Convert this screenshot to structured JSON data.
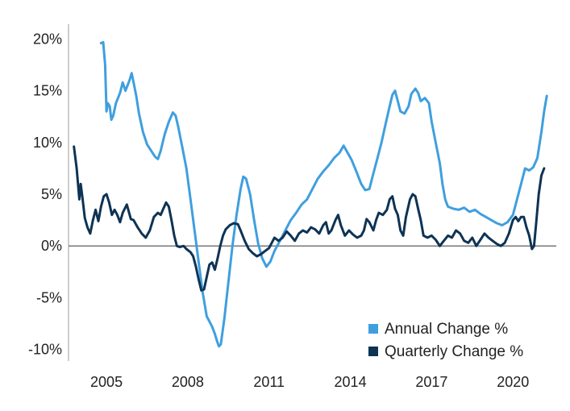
{
  "chart_data": {
    "type": "line",
    "title": "",
    "xlabel": "",
    "ylabel": "",
    "x_ticks": [
      "2005",
      "2008",
      "2011",
      "2014",
      "2017",
      "2020"
    ],
    "y_ticks": [
      "20%",
      "15%",
      "10%",
      "5%",
      "0%",
      "-5%",
      "-10%"
    ],
    "xlim": [
      2003.6,
      2021.6
    ],
    "ylim": [
      -10.5,
      20.5
    ],
    "grid": false,
    "zero_line": true,
    "legend": "bottom-right",
    "series": [
      {
        "name": "Annual Change %",
        "color": "#3f9fde",
        "points": [
          [
            2004.8,
            19.6
          ],
          [
            2004.88,
            19.7
          ],
          [
            2004.95,
            17.5
          ],
          [
            2005.0,
            13.0
          ],
          [
            2005.05,
            13.8
          ],
          [
            2005.12,
            13.5
          ],
          [
            2005.18,
            12.2
          ],
          [
            2005.25,
            12.6
          ],
          [
            2005.35,
            13.8
          ],
          [
            2005.5,
            14.8
          ],
          [
            2005.6,
            15.8
          ],
          [
            2005.7,
            15.0
          ],
          [
            2005.85,
            16.0
          ],
          [
            2005.93,
            16.7
          ],
          [
            2006.0,
            15.8
          ],
          [
            2006.1,
            14.5
          ],
          [
            2006.2,
            12.8
          ],
          [
            2006.35,
            11.0
          ],
          [
            2006.5,
            9.8
          ],
          [
            2006.65,
            9.2
          ],
          [
            2006.8,
            8.6
          ],
          [
            2006.9,
            8.4
          ],
          [
            2007.0,
            9.2
          ],
          [
            2007.15,
            10.8
          ],
          [
            2007.3,
            12.0
          ],
          [
            2007.45,
            12.9
          ],
          [
            2007.55,
            12.6
          ],
          [
            2007.65,
            11.5
          ],
          [
            2007.8,
            9.5
          ],
          [
            2007.95,
            7.5
          ],
          [
            2008.1,
            4.5
          ],
          [
            2008.25,
            1.5
          ],
          [
            2008.4,
            -1.5
          ],
          [
            2008.55,
            -4.5
          ],
          [
            2008.7,
            -6.8
          ],
          [
            2008.8,
            -7.3
          ],
          [
            2008.9,
            -7.8
          ],
          [
            2009.0,
            -8.5
          ],
          [
            2009.08,
            -9.2
          ],
          [
            2009.15,
            -9.7
          ],
          [
            2009.22,
            -9.5
          ],
          [
            2009.35,
            -7.0
          ],
          [
            2009.5,
            -3.5
          ],
          [
            2009.65,
            0.0
          ],
          [
            2009.8,
            3.0
          ],
          [
            2009.95,
            5.5
          ],
          [
            2010.05,
            6.7
          ],
          [
            2010.15,
            6.5
          ],
          [
            2010.3,
            5.0
          ],
          [
            2010.45,
            2.5
          ],
          [
            2010.6,
            0.2
          ],
          [
            2010.75,
            -1.2
          ],
          [
            2010.9,
            -2.0
          ],
          [
            2011.05,
            -1.5
          ],
          [
            2011.2,
            -0.5
          ],
          [
            2011.4,
            0.5
          ],
          [
            2011.6,
            1.5
          ],
          [
            2011.8,
            2.5
          ],
          [
            2012.0,
            3.2
          ],
          [
            2012.2,
            4.0
          ],
          [
            2012.4,
            4.5
          ],
          [
            2012.6,
            5.5
          ],
          [
            2012.8,
            6.5
          ],
          [
            2013.0,
            7.2
          ],
          [
            2013.2,
            7.8
          ],
          [
            2013.4,
            8.5
          ],
          [
            2013.6,
            9.0
          ],
          [
            2013.75,
            9.7
          ],
          [
            2013.9,
            9.0
          ],
          [
            2014.05,
            8.3
          ],
          [
            2014.25,
            7.0
          ],
          [
            2014.4,
            6.0
          ],
          [
            2014.55,
            5.4
          ],
          [
            2014.7,
            5.5
          ],
          [
            2014.85,
            7.0
          ],
          [
            2015.0,
            8.5
          ],
          [
            2015.15,
            10.0
          ],
          [
            2015.3,
            11.8
          ],
          [
            2015.45,
            13.5
          ],
          [
            2015.55,
            14.6
          ],
          [
            2015.65,
            15.0
          ],
          [
            2015.75,
            14.0
          ],
          [
            2015.85,
            13.0
          ],
          [
            2016.0,
            12.8
          ],
          [
            2016.15,
            13.5
          ],
          [
            2016.25,
            14.7
          ],
          [
            2016.4,
            15.2
          ],
          [
            2016.5,
            14.8
          ],
          [
            2016.6,
            14.0
          ],
          [
            2016.75,
            14.3
          ],
          [
            2016.9,
            13.8
          ],
          [
            2017.0,
            12.0
          ],
          [
            2017.15,
            10.0
          ],
          [
            2017.3,
            8.0
          ],
          [
            2017.4,
            6.0
          ],
          [
            2017.5,
            4.5
          ],
          [
            2017.6,
            3.8
          ],
          [
            2017.8,
            3.6
          ],
          [
            2018.0,
            3.5
          ],
          [
            2018.2,
            3.7
          ],
          [
            2018.4,
            3.3
          ],
          [
            2018.6,
            3.5
          ],
          [
            2018.8,
            3.1
          ],
          [
            2019.0,
            2.8
          ],
          [
            2019.2,
            2.5
          ],
          [
            2019.4,
            2.2
          ],
          [
            2019.6,
            2.0
          ],
          [
            2019.8,
            2.3
          ],
          [
            2020.0,
            3.0
          ],
          [
            2020.15,
            4.5
          ],
          [
            2020.3,
            6.0
          ],
          [
            2020.45,
            7.5
          ],
          [
            2020.6,
            7.3
          ],
          [
            2020.75,
            7.6
          ],
          [
            2020.9,
            8.5
          ],
          [
            2021.05,
            11.0
          ],
          [
            2021.15,
            13.0
          ],
          [
            2021.25,
            14.5
          ]
        ]
      },
      {
        "name": "Quarterly Change %",
        "color": "#0e3354",
        "points": [
          [
            2003.8,
            9.6
          ],
          [
            2003.9,
            7.5
          ],
          [
            2004.0,
            4.5
          ],
          [
            2004.05,
            6.0
          ],
          [
            2004.12,
            4.5
          ],
          [
            2004.2,
            2.7
          ],
          [
            2004.3,
            1.8
          ],
          [
            2004.4,
            1.2
          ],
          [
            2004.5,
            2.5
          ],
          [
            2004.6,
            3.5
          ],
          [
            2004.7,
            2.4
          ],
          [
            2004.8,
            3.8
          ],
          [
            2004.9,
            4.8
          ],
          [
            2005.0,
            5.0
          ],
          [
            2005.1,
            4.2
          ],
          [
            2005.2,
            3.0
          ],
          [
            2005.3,
            3.5
          ],
          [
            2005.4,
            3.0
          ],
          [
            2005.5,
            2.3
          ],
          [
            2005.6,
            3.2
          ],
          [
            2005.75,
            4.0
          ],
          [
            2005.9,
            2.6
          ],
          [
            2006.0,
            2.5
          ],
          [
            2006.15,
            1.8
          ],
          [
            2006.3,
            1.2
          ],
          [
            2006.45,
            0.8
          ],
          [
            2006.6,
            1.5
          ],
          [
            2006.75,
            2.8
          ],
          [
            2006.9,
            3.2
          ],
          [
            2007.0,
            3.0
          ],
          [
            2007.1,
            3.6
          ],
          [
            2007.2,
            4.2
          ],
          [
            2007.3,
            3.8
          ],
          [
            2007.4,
            2.5
          ],
          [
            2007.5,
            1.0
          ],
          [
            2007.6,
            0.0
          ],
          [
            2007.7,
            -0.1
          ],
          [
            2007.85,
            0.0
          ],
          [
            2007.95,
            -0.3
          ],
          [
            2008.1,
            -0.6
          ],
          [
            2008.2,
            -1.0
          ],
          [
            2008.3,
            -2.0
          ],
          [
            2008.4,
            -3.2
          ],
          [
            2008.5,
            -4.3
          ],
          [
            2008.6,
            -4.2
          ],
          [
            2008.7,
            -3.0
          ],
          [
            2008.8,
            -1.8
          ],
          [
            2008.9,
            -1.6
          ],
          [
            2009.0,
            -2.3
          ],
          [
            2009.1,
            -1.2
          ],
          [
            2009.2,
            0.0
          ],
          [
            2009.3,
            1.0
          ],
          [
            2009.4,
            1.6
          ],
          [
            2009.55,
            2.0
          ],
          [
            2009.7,
            2.2
          ],
          [
            2009.85,
            2.1
          ],
          [
            2009.95,
            1.5
          ],
          [
            2010.1,
            0.5
          ],
          [
            2010.25,
            -0.3
          ],
          [
            2010.4,
            -0.7
          ],
          [
            2010.55,
            -1.0
          ],
          [
            2010.7,
            -0.8
          ],
          [
            2010.85,
            -0.5
          ],
          [
            2011.0,
            -0.2
          ],
          [
            2011.1,
            0.3
          ],
          [
            2011.2,
            0.8
          ],
          [
            2011.35,
            0.5
          ],
          [
            2011.5,
            0.8
          ],
          [
            2011.65,
            1.4
          ],
          [
            2011.8,
            1.0
          ],
          [
            2011.95,
            0.5
          ],
          [
            2012.1,
            1.2
          ],
          [
            2012.25,
            1.5
          ],
          [
            2012.4,
            1.3
          ],
          [
            2012.55,
            1.8
          ],
          [
            2012.7,
            1.6
          ],
          [
            2012.85,
            1.2
          ],
          [
            2013.0,
            2.0
          ],
          [
            2013.1,
            2.3
          ],
          [
            2013.2,
            1.2
          ],
          [
            2013.3,
            1.5
          ],
          [
            2013.45,
            2.5
          ],
          [
            2013.55,
            3.0
          ],
          [
            2013.65,
            2.0
          ],
          [
            2013.8,
            1.0
          ],
          [
            2013.95,
            1.5
          ],
          [
            2014.1,
            1.1
          ],
          [
            2014.25,
            0.8
          ],
          [
            2014.4,
            1.0
          ],
          [
            2014.5,
            1.5
          ],
          [
            2014.6,
            2.6
          ],
          [
            2014.7,
            2.3
          ],
          [
            2014.85,
            1.5
          ],
          [
            2014.95,
            2.5
          ],
          [
            2015.05,
            3.2
          ],
          [
            2015.2,
            3.0
          ],
          [
            2015.35,
            3.5
          ],
          [
            2015.45,
            4.5
          ],
          [
            2015.55,
            4.8
          ],
          [
            2015.65,
            3.6
          ],
          [
            2015.75,
            3.0
          ],
          [
            2015.85,
            1.5
          ],
          [
            2015.95,
            1.0
          ],
          [
            2016.05,
            2.8
          ],
          [
            2016.2,
            4.5
          ],
          [
            2016.3,
            5.0
          ],
          [
            2016.4,
            4.8
          ],
          [
            2016.5,
            3.6
          ],
          [
            2016.6,
            2.5
          ],
          [
            2016.7,
            1.0
          ],
          [
            2016.85,
            0.8
          ],
          [
            2017.0,
            1.0
          ],
          [
            2017.15,
            0.6
          ],
          [
            2017.3,
            0.0
          ],
          [
            2017.45,
            0.5
          ],
          [
            2017.6,
            1.0
          ],
          [
            2017.75,
            0.8
          ],
          [
            2017.9,
            1.5
          ],
          [
            2018.05,
            1.2
          ],
          [
            2018.2,
            0.5
          ],
          [
            2018.35,
            0.3
          ],
          [
            2018.5,
            0.8
          ],
          [
            2018.65,
            0.0
          ],
          [
            2018.8,
            0.6
          ],
          [
            2018.95,
            1.2
          ],
          [
            2019.1,
            0.8
          ],
          [
            2019.25,
            0.5
          ],
          [
            2019.4,
            0.2
          ],
          [
            2019.55,
            0.0
          ],
          [
            2019.7,
            0.3
          ],
          [
            2019.85,
            1.2
          ],
          [
            2020.0,
            2.5
          ],
          [
            2020.1,
            2.8
          ],
          [
            2020.2,
            2.4
          ],
          [
            2020.3,
            2.8
          ],
          [
            2020.4,
            2.8
          ],
          [
            2020.5,
            1.8
          ],
          [
            2020.6,
            1.0
          ],
          [
            2020.7,
            -0.3
          ],
          [
            2020.78,
            0.0
          ],
          [
            2020.85,
            2.0
          ],
          [
            2020.95,
            5.0
          ],
          [
            2021.05,
            6.8
          ],
          [
            2021.15,
            7.5
          ]
        ]
      }
    ]
  }
}
